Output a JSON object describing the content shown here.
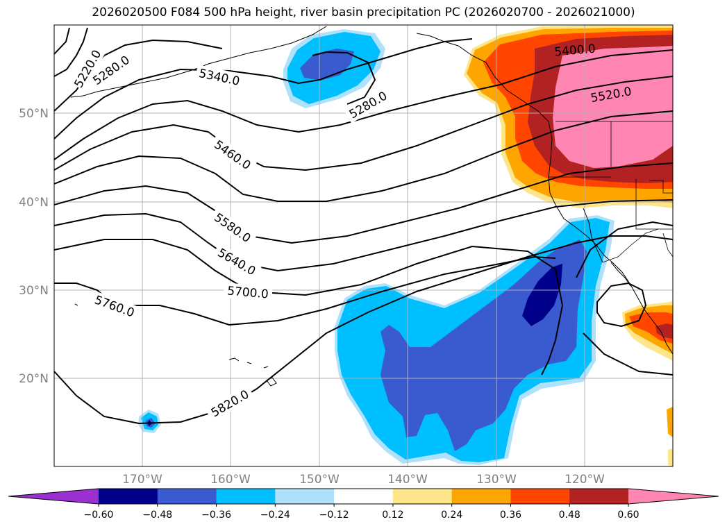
{
  "title": "2026020500 F084 500 hPa height, river basin precipitation PC (2026020700 - 2026021000)",
  "lat_labels": [
    "50°N",
    "40°N",
    "30°N",
    "20°N"
  ],
  "lon_labels": [
    "170°W",
    "160°W",
    "150°W",
    "140°W",
    "130°W",
    "120°W"
  ],
  "contour_labels": [
    "5220.0",
    "5280.0",
    "5340.0",
    "5280.0",
    "5400.0",
    "5520.0",
    "5460.0",
    "5580.0",
    "5640.0",
    "5700.0",
    "5760.0",
    "5820.0"
  ],
  "colorbar": {
    "ticks": [
      "−0.60",
      "−0.48",
      "−0.36",
      "−0.24",
      "−0.12",
      "0.12",
      "0.24",
      "0.36",
      "0.48",
      "0.60"
    ],
    "colors": [
      "#9b30d0",
      "#00008b",
      "#3a5bcf",
      "#00bfff",
      "#afe1fb",
      "#ffffff",
      "#fde68a",
      "#ffa500",
      "#ff4500",
      "#b22222",
      "#ff85b3"
    ]
  },
  "palette": {
    "light_blue": "#afe1fb",
    "deep_sky": "#00bfff",
    "royal": "#3a5bcf",
    "navy": "#00008b",
    "yellow": "#fde68a",
    "orange": "#ffa500",
    "red_orange": "#ff4500",
    "firebrick": "#b22222",
    "pink": "#ff85b3"
  }
}
